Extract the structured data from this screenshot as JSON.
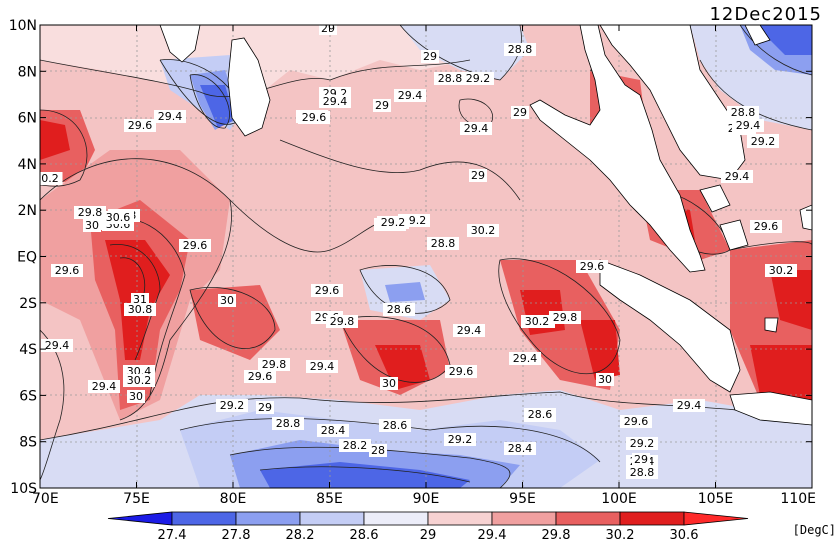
{
  "date": "12Dec2015",
  "unit": "[DegC]",
  "lat_ticks": [
    "10N",
    "8N",
    "6N",
    "4N",
    "2N",
    "EQ",
    "2S",
    "4S",
    "6S",
    "8S",
    "10S"
  ],
  "lon_ticks": [
    "70E",
    "75E",
    "80E",
    "85E",
    "90E",
    "95E",
    "100E",
    "105E",
    "110E"
  ],
  "colorbar": {
    "labels": [
      "27.4",
      "27.8",
      "28.2",
      "28.6",
      "29",
      "29.4",
      "29.8",
      "30.2",
      "30.6"
    ],
    "colors": [
      "#1b1be6",
      "#4d66e6",
      "#8c9ff0",
      "#c4cdf5",
      "#ecedf9",
      "#f7d2d2",
      "#f0a0a0",
      "#e86060",
      "#e01e1e",
      "#ff2a2a"
    ]
  },
  "contour_labels": [
    {
      "text": "29"
    },
    {
      "text": "29"
    },
    {
      "text": "28.8"
    },
    {
      "text": "28.8"
    },
    {
      "text": "29.2"
    },
    {
      "text": "29.4"
    },
    {
      "text": "29.2"
    },
    {
      "text": "29.4"
    },
    {
      "text": "29"
    },
    {
      "text": "29.4"
    },
    {
      "text": "29"
    },
    {
      "text": "29.4"
    },
    {
      "text": "29.6"
    },
    {
      "text": "29.6"
    },
    {
      "text": "29"
    },
    {
      "text": "28.8"
    },
    {
      "text": "29.2"
    },
    {
      "text": "30.2"
    },
    {
      "text": "29.8"
    },
    {
      "text": "30.6"
    },
    {
      "text": "30"
    },
    {
      "text": "29.6"
    },
    {
      "text": "29.6"
    },
    {
      "text": "31"
    },
    {
      "text": "30.8"
    },
    {
      "text": "30"
    },
    {
      "text": "29.6"
    },
    {
      "text": "29.6"
    },
    {
      "text": "29.4"
    },
    {
      "text": "30.4"
    },
    {
      "text": "30.2"
    },
    {
      "text": "29.4"
    },
    {
      "text": "30"
    },
    {
      "text": "29.8"
    },
    {
      "text": "29.6"
    },
    {
      "text": "29.8"
    },
    {
      "text": "29.4"
    },
    {
      "text": "29.2"
    },
    {
      "text": "29"
    },
    {
      "text": "28.8"
    },
    {
      "text": "28.4"
    },
    {
      "text": "28.2"
    },
    {
      "text": "28"
    },
    {
      "text": "28.6"
    },
    {
      "text": "28.6"
    },
    {
      "text": "29.8"
    },
    {
      "text": "29.4"
    },
    {
      "text": "30"
    },
    {
      "text": "29.2"
    },
    {
      "text": "29.2"
    },
    {
      "text": "29.2"
    },
    {
      "text": "28.8"
    },
    {
      "text": "29.4"
    },
    {
      "text": "29"
    },
    {
      "text": "29.4"
    },
    {
      "text": "29.6"
    },
    {
      "text": "30.2"
    },
    {
      "text": "29.8"
    },
    {
      "text": "30"
    },
    {
      "text": "29.4"
    },
    {
      "text": "29.6"
    },
    {
      "text": "29.4"
    },
    {
      "text": "29.6"
    },
    {
      "text": "28.6"
    },
    {
      "text": "28.4"
    },
    {
      "text": "29.2"
    },
    {
      "text": "29"
    },
    {
      "text": "28.8"
    },
    {
      "text": "29.6"
    },
    {
      "text": "29.6"
    },
    {
      "text": "29.4"
    },
    {
      "text": "29.6"
    },
    {
      "text": "30.2"
    },
    {
      "text": "28.8"
    },
    {
      "text": "29.2"
    },
    {
      "text": "29.4"
    },
    {
      "text": "28.6"
    },
    {
      "text": "0.2"
    },
    {
      "text": "29.8"
    },
    {
      "text": "30.6"
    },
    {
      "text": "30"
    }
  ]
}
